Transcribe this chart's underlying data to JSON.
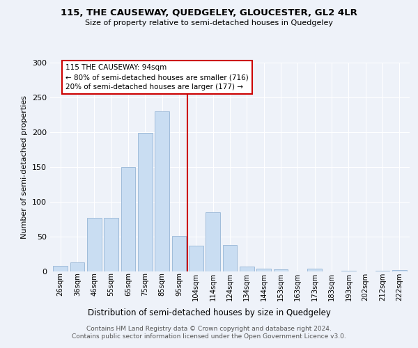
{
  "title": "115, THE CAUSEWAY, QUEDGELEY, GLOUCESTER, GL2 4LR",
  "subtitle": "Size of property relative to semi-detached houses in Quedgeley",
  "xlabel": "Distribution of semi-detached houses by size in Quedgeley",
  "ylabel": "Number of semi-detached properties",
  "footer": "Contains HM Land Registry data © Crown copyright and database right 2024.\nContains public sector information licensed under the Open Government Licence v3.0.",
  "bar_labels": [
    "26sqm",
    "36sqm",
    "46sqm",
    "55sqm",
    "65sqm",
    "75sqm",
    "85sqm",
    "95sqm",
    "104sqm",
    "114sqm",
    "124sqm",
    "134sqm",
    "144sqm",
    "153sqm",
    "163sqm",
    "173sqm",
    "183sqm",
    "193sqm",
    "202sqm",
    "212sqm",
    "222sqm"
  ],
  "bar_values": [
    8,
    13,
    77,
    77,
    150,
    199,
    230,
    51,
    37,
    85,
    38,
    7,
    4,
    3,
    0,
    4,
    0,
    1,
    0,
    1,
    2
  ],
  "bar_color": "#c9ddf2",
  "bar_edge_color": "#a0bcda",
  "annotation_text_line1": "115 THE CAUSEWAY: 94sqm",
  "annotation_text_line2": "← 80% of semi-detached houses are smaller (716)",
  "annotation_text_line3": "20% of semi-detached houses are larger (177) →",
  "annotation_box_color": "#cc0000",
  "vline_x": 7.5,
  "ylim": [
    0,
    300
  ],
  "yticks": [
    0,
    50,
    100,
    150,
    200,
    250,
    300
  ],
  "bg_color": "#eef2f9",
  "grid_color": "#ffffff"
}
